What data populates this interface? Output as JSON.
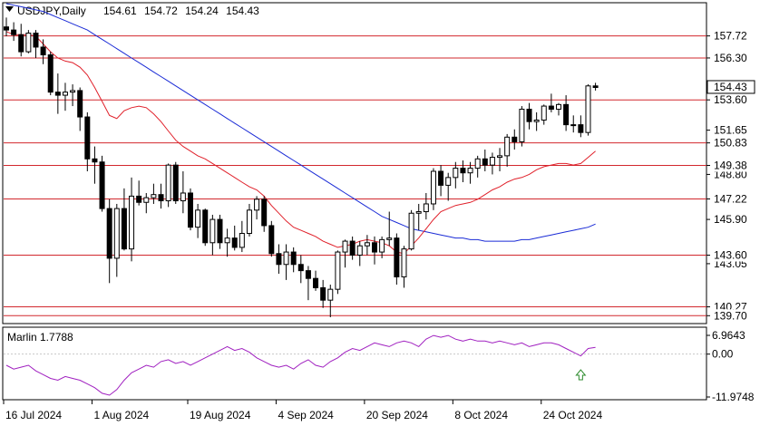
{
  "chart_data": {
    "type": "candlestick",
    "symbol_header": "USDJPY,Daily",
    "ohlc_header": [
      "154.61",
      "154.72",
      "154.24",
      "154.43"
    ],
    "price_range": [
      139.25,
      159.8
    ],
    "price_ticks": [
      "151.65",
      "148.80",
      "145.90",
      "143.05"
    ],
    "last_price": "154.43",
    "levels": [
      {
        "price": 157.72,
        "label": "157.72"
      },
      {
        "price": 156.3,
        "label": "156.30"
      },
      {
        "price": 153.6,
        "label": "153.60"
      },
      {
        "price": 150.83,
        "label": "150.83"
      },
      {
        "price": 149.38,
        "label": "149.38"
      },
      {
        "price": 147.22,
        "label": "147.22"
      },
      {
        "price": 143.6,
        "label": "143.60"
      },
      {
        "price": 140.27,
        "label": "140.27"
      },
      {
        "price": 139.7,
        "label": "139.70"
      }
    ],
    "dates": [
      "16 Jul 2024",
      "1 Aug 2024",
      "19 Aug 2024",
      "4 Sep 2024",
      "20 Sep 2024",
      "8 Oct 2024",
      "24 Oct 2024"
    ],
    "date_index": [
      0,
      12,
      25,
      37,
      49,
      61,
      73
    ],
    "candles": [
      [
        158.3,
        158.9,
        157.7,
        158.1
      ],
      [
        158.1,
        158.6,
        157.4,
        157.8
      ],
      [
        157.8,
        158.5,
        156.4,
        156.7
      ],
      [
        156.7,
        158.1,
        156.6,
        157.9
      ],
      [
        157.9,
        158.1,
        156.3,
        157.0
      ],
      [
        157.0,
        157.5,
        155.9,
        156.5
      ],
      [
        156.5,
        156.7,
        153.9,
        154.1
      ],
      [
        154.1,
        155.3,
        152.7,
        153.9
      ],
      [
        153.9,
        154.7,
        152.9,
        154.1
      ],
      [
        154.1,
        154.6,
        153.2,
        154.2
      ],
      [
        154.2,
        154.4,
        151.6,
        152.5
      ],
      [
        152.5,
        152.8,
        149.0,
        149.8
      ],
      [
        149.8,
        150.6,
        148.2,
        149.6
      ],
      [
        149.6,
        150.0,
        146.4,
        146.6
      ],
      [
        146.6,
        147.2,
        141.8,
        143.4
      ],
      [
        143.4,
        146.9,
        142.2,
        146.6
      ],
      [
        146.6,
        147.9,
        143.9,
        144.0
      ],
      [
        144.0,
        148.6,
        143.2,
        147.4
      ],
      [
        147.4,
        148.4,
        146.8,
        147.0
      ],
      [
        147.0,
        147.6,
        146.3,
        147.3
      ],
      [
        147.3,
        148.2,
        146.9,
        147.5
      ],
      [
        147.5,
        148.2,
        146.6,
        147.1
      ],
      [
        147.1,
        149.5,
        146.7,
        149.4
      ],
      [
        149.4,
        149.6,
        146.9,
        147.1
      ],
      [
        147.1,
        149.0,
        146.3,
        147.6
      ],
      [
        147.6,
        147.9,
        145.2,
        145.4
      ],
      [
        145.4,
        146.9,
        144.7,
        146.5
      ],
      [
        146.5,
        146.6,
        144.2,
        144.4
      ],
      [
        144.4,
        146.2,
        143.6,
        145.9
      ],
      [
        145.9,
        146.2,
        144.0,
        144.4
      ],
      [
        144.4,
        145.3,
        143.5,
        144.7
      ],
      [
        144.7,
        145.5,
        143.9,
        144.1
      ],
      [
        144.1,
        145.8,
        143.8,
        145.0
      ],
      [
        145.0,
        146.9,
        144.8,
        146.5
      ],
      [
        146.5,
        147.4,
        145.9,
        147.2
      ],
      [
        147.2,
        147.4,
        145.1,
        145.5
      ],
      [
        145.5,
        145.8,
        143.5,
        143.7
      ],
      [
        143.7,
        144.3,
        142.4,
        143.0
      ],
      [
        143.0,
        144.3,
        142.0,
        143.8
      ],
      [
        143.8,
        144.1,
        142.5,
        143.0
      ],
      [
        143.0,
        143.6,
        141.8,
        142.6
      ],
      [
        142.6,
        142.9,
        140.7,
        142.1
      ],
      [
        142.1,
        142.6,
        141.3,
        141.5
      ],
      [
        141.5,
        142.0,
        140.2,
        140.7
      ],
      [
        140.7,
        141.7,
        139.6,
        141.4
      ],
      [
        141.4,
        143.9,
        141.1,
        143.8
      ],
      [
        143.8,
        144.6,
        142.8,
        144.5
      ],
      [
        144.5,
        144.8,
        143.3,
        143.6
      ],
      [
        143.6,
        144.5,
        142.9,
        144.2
      ],
      [
        144.2,
        144.9,
        143.6,
        144.4
      ],
      [
        144.4,
        144.8,
        143.0,
        143.8
      ],
      [
        143.8,
        144.8,
        143.4,
        144.6
      ],
      [
        144.6,
        146.4,
        144.2,
        144.7
      ],
      [
        144.7,
        145.0,
        141.7,
        142.2
      ],
      [
        142.2,
        144.2,
        141.5,
        144.0
      ],
      [
        144.0,
        146.5,
        143.9,
        146.3
      ],
      [
        146.3,
        146.9,
        145.2,
        146.4
      ],
      [
        146.4,
        147.6,
        145.9,
        146.9
      ],
      [
        146.9,
        149.2,
        146.5,
        149.0
      ],
      [
        149.0,
        149.4,
        147.4,
        148.1
      ],
      [
        148.1,
        148.9,
        147.1,
        148.6
      ],
      [
        148.6,
        149.6,
        147.9,
        149.2
      ],
      [
        149.2,
        149.7,
        148.3,
        148.9
      ],
      [
        148.9,
        149.6,
        148.2,
        149.2
      ],
      [
        149.2,
        150.0,
        148.6,
        149.8
      ],
      [
        149.8,
        150.4,
        149.0,
        149.4
      ],
      [
        149.4,
        150.2,
        148.8,
        149.9
      ],
      [
        149.9,
        150.5,
        149.0,
        150.0
      ],
      [
        150.0,
        151.4,
        149.3,
        151.2
      ],
      [
        151.2,
        151.7,
        150.4,
        150.9
      ],
      [
        150.9,
        153.2,
        150.6,
        153.0
      ],
      [
        153.0,
        153.4,
        151.7,
        152.2
      ],
      [
        152.2,
        152.8,
        151.6,
        152.3
      ],
      [
        152.3,
        153.3,
        152.0,
        153.2
      ],
      [
        153.2,
        154.0,
        152.8,
        153.0
      ],
      [
        153.0,
        153.4,
        152.6,
        153.3
      ],
      [
        153.3,
        153.9,
        151.6,
        152.0
      ],
      [
        152.0,
        152.6,
        151.5,
        152.0
      ],
      [
        152.0,
        152.6,
        151.2,
        151.5
      ],
      [
        151.5,
        154.6,
        151.3,
        154.5
      ],
      [
        154.5,
        154.7,
        154.2,
        154.4
      ]
    ],
    "ma_red": [
      158.0,
      157.8,
      157.8,
      157.8,
      157.7,
      157.2,
      156.7,
      156.3,
      156.1,
      156.0,
      155.7,
      155.2,
      154.4,
      153.5,
      152.6,
      152.4,
      152.9,
      153.1,
      153.2,
      153.1,
      152.7,
      152.2,
      151.6,
      151.0,
      150.6,
      150.3,
      150.0,
      149.8,
      149.5,
      149.2,
      148.9,
      148.6,
      148.3,
      148.0,
      147.8,
      147.4,
      146.8,
      146.3,
      145.8,
      145.4,
      145.2,
      145.0,
      144.8,
      144.5,
      144.3,
      144.1,
      144.2,
      144.3,
      144.5,
      144.6,
      144.5,
      144.4,
      144.2,
      143.8,
      143.7,
      144.2,
      144.7,
      145.3,
      145.9,
      146.4,
      146.6,
      146.8,
      146.9,
      147.0,
      147.2,
      147.5,
      147.8,
      148.0,
      148.3,
      148.5,
      148.6,
      148.8,
      149.1,
      149.3,
      149.4,
      149.5,
      149.5,
      149.4,
      149.5,
      149.9,
      150.3
    ],
    "ma_blue": [
      159.8,
      159.7,
      159.6,
      159.5,
      159.4,
      159.3,
      159.1,
      158.9,
      158.7,
      158.5,
      158.3,
      158.1,
      157.8,
      157.5,
      157.2,
      156.9,
      156.6,
      156.3,
      156.0,
      155.7,
      155.4,
      155.1,
      154.8,
      154.5,
      154.2,
      153.9,
      153.6,
      153.3,
      153.0,
      152.7,
      152.4,
      152.1,
      151.8,
      151.5,
      151.2,
      150.9,
      150.6,
      150.3,
      150.0,
      149.7,
      149.4,
      149.1,
      148.8,
      148.5,
      148.2,
      147.9,
      147.6,
      147.3,
      147.0,
      146.7,
      146.4,
      146.1,
      145.9,
      145.7,
      145.5,
      145.3,
      145.2,
      145.1,
      145.0,
      144.9,
      144.8,
      144.7,
      144.7,
      144.6,
      144.6,
      144.5,
      144.5,
      144.5,
      144.5,
      144.5,
      144.6,
      144.6,
      144.7,
      144.8,
      144.9,
      145.0,
      145.1,
      145.2,
      145.3,
      145.4,
      145.6
    ],
    "oscillator": {
      "label": "Marlin 1.7788",
      "range": [
        -11.9748,
        6.9643
      ],
      "top_label": "6.9643",
      "mid_label": "0.00",
      "bottom_label": "-11.9748",
      "values": [
        -3.0,
        -4.0,
        -3.5,
        -3.0,
        -4.5,
        -5.5,
        -6.5,
        -7.0,
        -6.0,
        -6.5,
        -7.0,
        -8.0,
        -9.0,
        -10.5,
        -11.0,
        -9.5,
        -7.0,
        -5.0,
        -4.0,
        -3.0,
        -3.5,
        -2.0,
        -1.5,
        -2.5,
        -2.0,
        -3.0,
        -2.0,
        -1.0,
        0.0,
        1.0,
        2.0,
        1.0,
        1.5,
        0.5,
        -1.0,
        -2.0,
        -3.0,
        -3.5,
        -3.0,
        -4.0,
        -2.5,
        -1.5,
        -3.0,
        -3.5,
        -2.0,
        -1.0,
        0.5,
        1.5,
        1.0,
        2.0,
        3.0,
        2.5,
        2.0,
        3.0,
        3.5,
        3.0,
        2.0,
        4.0,
        5.0,
        4.5,
        5.0,
        4.0,
        3.5,
        4.0,
        3.5,
        3.5,
        3.0,
        3.5,
        3.0,
        2.5,
        3.0,
        2.0,
        2.5,
        3.0,
        3.0,
        2.5,
        1.5,
        0.5,
        -0.5,
        1.5,
        1.8
      ],
      "arrow_index": 78,
      "arrow_color": "#2e8b2e"
    },
    "colors": {
      "ma_red": "#e0202a",
      "ma_blue": "#1a2bd6",
      "level_line": "#d2282e",
      "oscillator": "#a020c0"
    }
  }
}
